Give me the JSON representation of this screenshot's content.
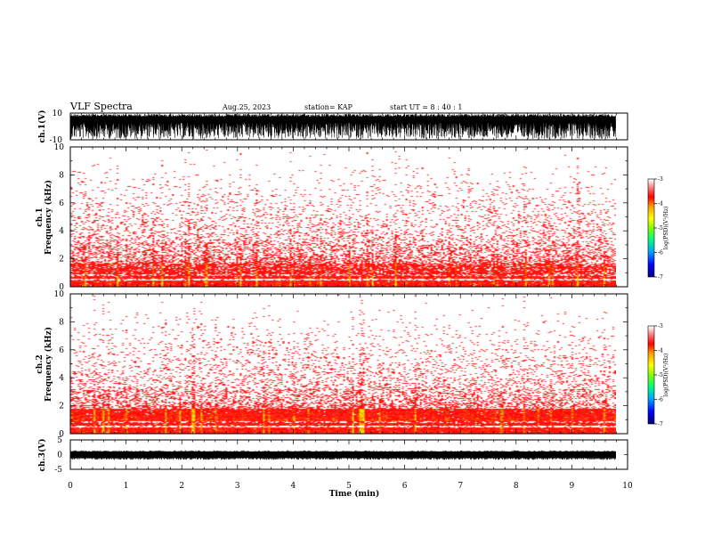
{
  "header": {
    "title": "VLF Spectra",
    "date": "Aug.25, 2023",
    "station": "station= KAP",
    "start": "start UT =  8 : 40 : 1"
  },
  "chart_data": [
    {
      "type": "line",
      "name": "ch1-waveform",
      "ylabel": "ch.1(V)",
      "ylim": [
        -10,
        10
      ],
      "yticks": [
        "10",
        "-10"
      ],
      "xlim": [
        0,
        10
      ]
    },
    {
      "type": "heatmap",
      "name": "ch1-spectrogram",
      "ylabel_line1": "ch.1",
      "ylabel_line2": "Frequency (kHz)",
      "ylim": [
        0,
        10
      ],
      "yticks": [
        "0",
        "2",
        "4",
        "6",
        "8",
        "10"
      ],
      "xlim": [
        0,
        10
      ],
      "colorbar": {
        "label": "log(PSD)(V²/Hz)",
        "range": [
          -7,
          -3
        ],
        "ticks": [
          "-3",
          "-4",
          "-5",
          "-6",
          "-7"
        ]
      }
    },
    {
      "type": "heatmap",
      "name": "ch2-spectrogram",
      "ylabel_line1": "ch.2",
      "ylabel_line2": "Frequency (kHz)",
      "ylim": [
        0,
        10
      ],
      "yticks": [
        "0",
        "2",
        "4",
        "6",
        "8",
        "10"
      ],
      "xlim": [
        0,
        10
      ],
      "colorbar": {
        "label": "log(PSD)(V²/Hz)",
        "range": [
          -7,
          -3
        ],
        "ticks": [
          "-3",
          "-4",
          "-5",
          "-6",
          "-7"
        ]
      }
    },
    {
      "type": "line",
      "name": "ch3-waveform",
      "ylabel": "ch.3(V)",
      "ylim": [
        -5,
        5
      ],
      "yticks": [
        "5",
        "0",
        "-5"
      ],
      "xlabel": "Time (min)",
      "xlim": [
        0,
        10
      ],
      "xticks": [
        "0",
        "1",
        "2",
        "3",
        "4",
        "5",
        "6",
        "7",
        "8",
        "9",
        "10"
      ]
    }
  ],
  "colors": {
    "background": "#ffffff",
    "axes": "#000000",
    "colormap": [
      "#000080",
      "#0000ff",
      "#00a0ff",
      "#00ff80",
      "#80ff00",
      "#ffff00",
      "#ffa000",
      "#ff0000",
      "#ff8080",
      "#ffffff"
    ]
  }
}
